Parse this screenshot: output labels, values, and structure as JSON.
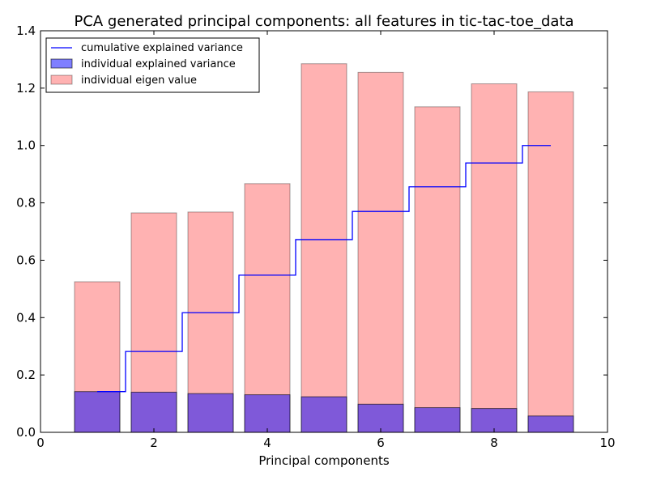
{
  "chart_data": {
    "type": "bar",
    "title": "PCA generated principal components: all features in tic-tac-toe_data",
    "xlabel": "Principal components",
    "ylabel": "",
    "xlim": [
      0,
      10
    ],
    "ylim": [
      0,
      1.4
    ],
    "x_ticks": [
      0,
      2,
      4,
      6,
      8,
      10
    ],
    "y_ticks": [
      0.0,
      0.2,
      0.4,
      0.6,
      0.8,
      1.0,
      1.2,
      1.4
    ],
    "grid": false,
    "legend_position": "top-left",
    "x": [
      1,
      2,
      3,
      4,
      5,
      6,
      7,
      8,
      9
    ],
    "series": [
      {
        "name": "individual eigen value",
        "kind": "bar",
        "color": "#ff7f7f",
        "values": [
          0.525,
          0.765,
          0.768,
          0.867,
          1.285,
          1.255,
          1.135,
          1.215,
          1.187
        ]
      },
      {
        "name": "individual explained variance",
        "kind": "bar",
        "color": "#0000ff",
        "values": [
          0.142,
          0.14,
          0.135,
          0.131,
          0.124,
          0.098,
          0.086,
          0.083,
          0.057
        ]
      },
      {
        "name": "cumulative explained variance",
        "kind": "step",
        "color": "#0000ff",
        "values": [
          0.142,
          0.282,
          0.417,
          0.548,
          0.672,
          0.77,
          0.856,
          0.939,
          1.0
        ]
      }
    ]
  }
}
